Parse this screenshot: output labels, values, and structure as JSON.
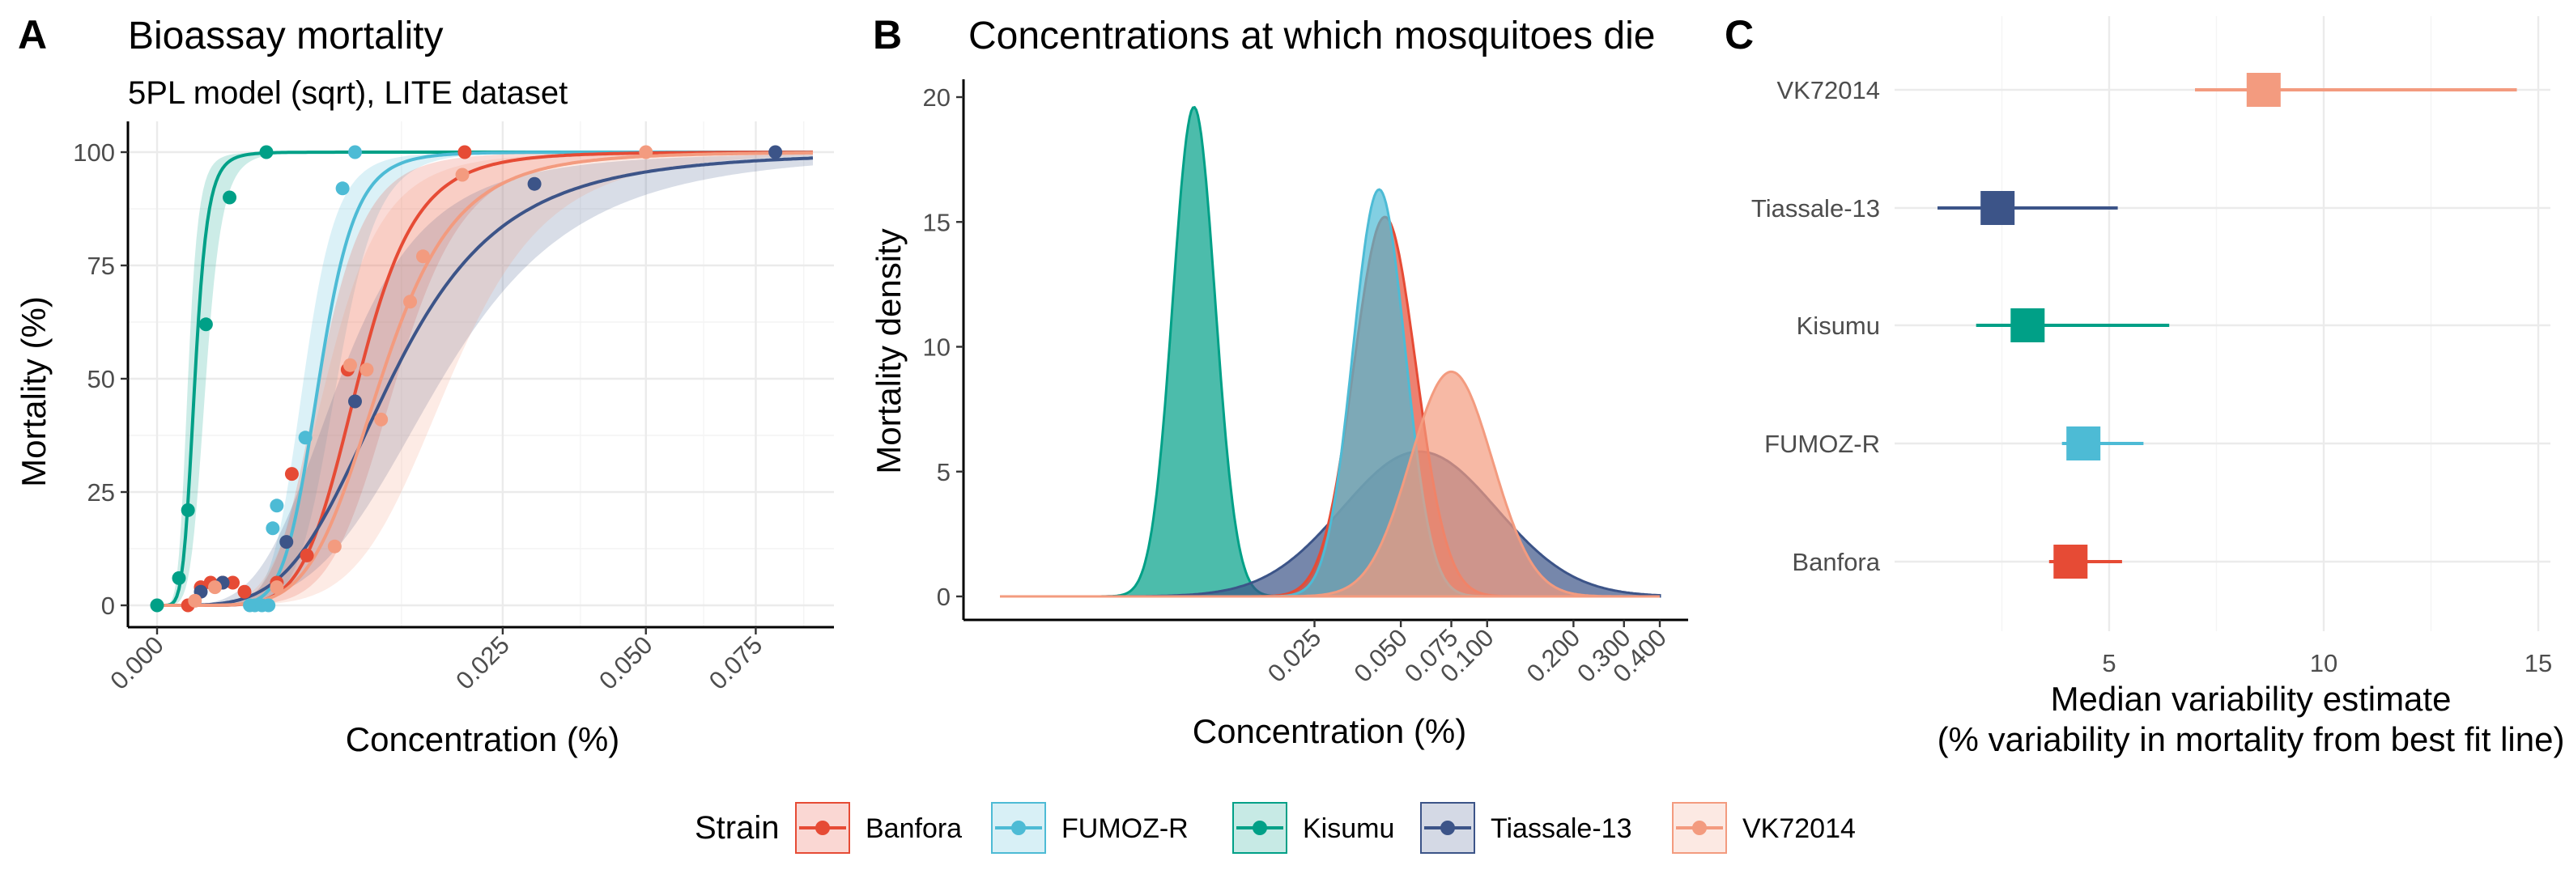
{
  "colors": {
    "Banfora": "#e64b35",
    "FUMOZ-R": "#4dbbd5",
    "Kisumu": "#00a087",
    "Tiassale-13": "#3c5488",
    "VK72014": "#f39b7f"
  },
  "legend": {
    "title": "Strain",
    "items": [
      "Banfora",
      "FUMOZ-R",
      "Kisumu",
      "Tiassale-13",
      "VK72014"
    ]
  },
  "chart_data": [
    {
      "tag": "A",
      "type": "scatter",
      "title": "Bioassay mortality",
      "subtitle": "5PL model (sqrt), LITE dataset",
      "xlabel": "Concentration (%)",
      "ylabel": "Mortality (%)",
      "x_scale": "sqrt",
      "xlim": [
        0,
        0.09
      ],
      "ylim": [
        0,
        100
      ],
      "grid": true,
      "x_ticks": [
        0.0,
        0.025,
        0.05,
        0.075
      ],
      "x_tick_labels": [
        "0.000",
        "0.025",
        "0.050",
        "0.075"
      ],
      "y_ticks": [
        0,
        25,
        50,
        75,
        100
      ],
      "y_tick_labels": [
        "0",
        "25",
        "50",
        "75",
        "100"
      ],
      "fitted_curve": "5PL logistic on sqrt(concentration) with shaded confidence ribbon",
      "series": [
        {
          "name": "Kisumu",
          "ec50": 0.0003,
          "ribbon": [
            0.0002,
            0.0005
          ],
          "points": [
            [
              0.0,
              0
            ],
            [
              0.0001,
              6
            ],
            [
              0.0002,
              21
            ],
            [
              0.0005,
              62
            ],
            [
              0.0011,
              90
            ],
            [
              0.0025,
              100
            ]
          ]
        },
        {
          "name": "FUMOZ-R",
          "ec50": 0.0055,
          "ribbon": [
            0.0045,
            0.0068
          ],
          "points": [
            [
              0.0018,
              0
            ],
            [
              0.002,
              0
            ],
            [
              0.0023,
              0
            ],
            [
              0.0026,
              0
            ],
            [
              0.0028,
              17
            ],
            [
              0.003,
              22
            ],
            [
              0.0046,
              37
            ],
            [
              0.0072,
              92
            ],
            [
              0.0082,
              100
            ]
          ]
        },
        {
          "name": "Banfora",
          "ec50": 0.0085,
          "ribbon": [
            0.0055,
            0.012
          ],
          "points": [
            [
              0.0002,
              0
            ],
            [
              0.0004,
              4
            ],
            [
              0.0006,
              5
            ],
            [
              0.0009,
              5
            ],
            [
              0.0012,
              5
            ],
            [
              0.0016,
              3
            ],
            [
              0.003,
              5
            ],
            [
              0.0038,
              29
            ],
            [
              0.0047,
              11
            ],
            [
              0.0076,
              52
            ],
            [
              0.0198,
              100
            ]
          ]
        },
        {
          "name": "Tiassale-13",
          "ec50": 0.0115,
          "ribbon": [
            0.007,
            0.017
          ],
          "points": [
            [
              0.0004,
              3
            ],
            [
              0.0009,
              5
            ],
            [
              0.0035,
              14
            ],
            [
              0.0082,
              45
            ],
            [
              0.0298,
              93
            ],
            [
              0.08,
              100
            ]
          ]
        },
        {
          "name": "VK72014",
          "ec50": 0.0105,
          "ribbon": [
            0.006,
            0.018
          ],
          "points": [
            [
              0.0003,
              1
            ],
            [
              0.0007,
              4
            ],
            [
              0.003,
              4
            ],
            [
              0.0066,
              13
            ],
            [
              0.0078,
              53
            ],
            [
              0.0092,
              52
            ],
            [
              0.0105,
              41
            ],
            [
              0.0134,
              67
            ],
            [
              0.0148,
              77
            ],
            [
              0.0195,
              95
            ],
            [
              0.05,
              100
            ]
          ]
        }
      ]
    },
    {
      "tag": "B",
      "type": "area",
      "title": "Concentrations at which mosquitoes die",
      "xlabel": "Concentration (%)",
      "ylabel": "Mortality density",
      "x_scale": "log",
      "xlim": [
        0.002,
        0.4
      ],
      "ylim": [
        0,
        20
      ],
      "grid": false,
      "x_ticks": [
        0.025,
        0.05,
        0.075,
        0.1,
        0.2,
        0.3,
        0.4
      ],
      "x_tick_labels": [
        "0.025",
        "0.050",
        "0.075",
        "0.100",
        "0.200",
        "0.300",
        "0.400"
      ],
      "y_ticks": [
        0,
        5,
        10,
        15,
        20
      ],
      "y_tick_labels": [
        "0",
        "5",
        "10",
        "15",
        "20"
      ],
      "series": [
        {
          "name": "Kisumu",
          "mode": 0.0095,
          "peak": 19.6,
          "log_sd": 0.17
        },
        {
          "name": "Tiassale-13",
          "mode": 0.058,
          "peak": 5.8,
          "log_sd": 0.62
        },
        {
          "name": "Banfora",
          "mode": 0.044,
          "peak": 15.2,
          "log_sd": 0.25
        },
        {
          "name": "FUMOZ-R",
          "mode": 0.042,
          "peak": 16.3,
          "log_sd": 0.21
        },
        {
          "name": "VK72014",
          "mode": 0.075,
          "peak": 9.0,
          "log_sd": 0.33
        }
      ]
    },
    {
      "tag": "C",
      "type": "scatter",
      "xlabel": "Median variability estimate",
      "xlabel2": "(% variability in mortality from best fit line)",
      "xlim": [
        0,
        15
      ],
      "grid": true,
      "x_ticks": [
        5,
        10,
        15
      ],
      "x_tick_labels": [
        "5",
        "10",
        "15"
      ],
      "categories": [
        "VK72014",
        "Tiassale-13",
        "Kisumu",
        "FUMOZ-R",
        "Banfora"
      ],
      "series": [
        {
          "name": "VK72014",
          "median": 8.6,
          "low": 7.0,
          "high": 14.5
        },
        {
          "name": "Tiassale-13",
          "median": 2.4,
          "low": 1.0,
          "high": 5.2
        },
        {
          "name": "Kisumu",
          "median": 3.1,
          "low": 1.9,
          "high": 6.4
        },
        {
          "name": "FUMOZ-R",
          "median": 4.4,
          "low": 3.9,
          "high": 5.8
        },
        {
          "name": "Banfora",
          "median": 4.1,
          "low": 3.6,
          "high": 5.3
        }
      ]
    }
  ]
}
